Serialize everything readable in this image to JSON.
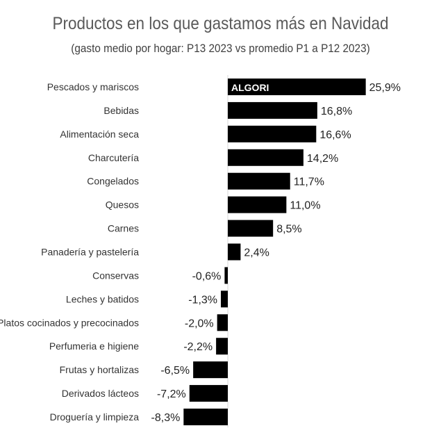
{
  "chart_data": {
    "type": "bar",
    "orientation": "horizontal",
    "title": "Productos en los que gastamos más en Navidad",
    "subtitle": "(gasto medio por hogar: P13 2023 vs promedio P1 a P12 2023)",
    "categories": [
      "Pescados y mariscos",
      "Bebidas",
      "Alimentación seca",
      "Charcutería",
      "Congelados",
      "Quesos",
      "Carnes",
      "Panadería y pastelería",
      "Conservas",
      "Leches y batidos",
      "Platos cocinados y precocinados",
      "Perfumeria e higiene",
      "Frutas y hortalizas",
      "Derivados lácteos",
      "Droguería y limpieza"
    ],
    "values": [
      25.9,
      16.8,
      16.6,
      14.2,
      11.7,
      11.0,
      8.5,
      2.4,
      -0.6,
      -1.3,
      -2.0,
      -2.2,
      -6.5,
      -7.2,
      -8.3
    ],
    "data_labels": [
      "25,9%",
      "16,8%",
      "16,6%",
      "14,2%",
      "11,7%",
      "11,0%",
      "8,5%",
      "2,4%",
      "-0,6%",
      "-1,3%",
      "-2,0%",
      "-2,2%",
      "-6,5%",
      "-7,2%",
      "-8,3%"
    ],
    "unit": "%",
    "bar_color": "#000000",
    "grid": false,
    "legend": "none"
  },
  "watermark": "ALGORI"
}
